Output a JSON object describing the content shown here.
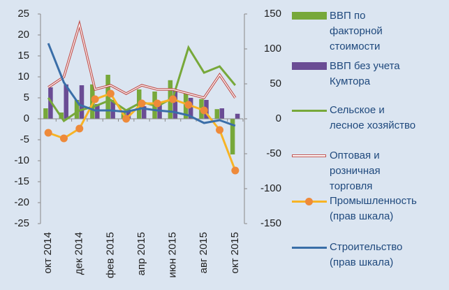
{
  "chart_data": {
    "type": "bar",
    "categories": [
      "окт 2014",
      null,
      "дек 2014",
      null,
      "фев 2015",
      null,
      "апр 2015",
      null,
      "июн 2015",
      null,
      "авг 2015",
      null,
      "окт 2015"
    ],
    "ylim": [
      -25,
      25
    ],
    "yticks": [
      -25,
      -20,
      -15,
      -10,
      -5,
      0,
      5,
      10,
      15,
      20,
      25
    ],
    "y2lim": [
      -150,
      150
    ],
    "y2ticks": [
      -150,
      -100,
      -50,
      0,
      50,
      100,
      150
    ],
    "series": [
      {
        "name": "ВВП по факторной стоимости",
        "type": "bar",
        "color": "#77a83a",
        "values": [
          2.5,
          1.5,
          4.5,
          8.2,
          10.5,
          1.5,
          7,
          6.5,
          9.2,
          6,
          4.7,
          2.3,
          -8.5
        ]
      },
      {
        "name": "ВВП без учета Кумтора",
        "type": "bar",
        "color": "#6a4c94",
        "values": [
          7.5,
          8.2,
          8,
          3.5,
          4.5,
          2.2,
          3,
          3.5,
          6.8,
          5,
          4.5,
          2.5,
          1.2
        ]
      },
      {
        "name": "Сельское и лесное хозяйство",
        "type": "line",
        "color": "#77a83a",
        "values": [
          5,
          -0.5,
          2,
          3,
          4.5,
          2,
          4,
          3,
          5,
          17,
          11,
          12.5,
          8
        ]
      },
      {
        "name": "Оптовая и розничная торговля",
        "type": "line",
        "color": "#c0504d",
        "values": [
          7.5,
          10,
          22.5,
          7,
          8,
          6,
          8,
          7,
          7,
          6,
          5,
          10.5,
          5
        ]
      },
      {
        "name": "Промышленность (прав шкала)",
        "type": "line",
        "axis": "y2",
        "color": "#f7b425",
        "marker": "#ee8a3a",
        "values": [
          -20,
          -28,
          -14,
          28,
          36,
          0,
          22,
          22,
          28,
          20,
          12,
          -16,
          -74
        ]
      },
      {
        "name": "Строительство (прав шкала)",
        "type": "line",
        "axis": "y2",
        "color": "#3a6ea8",
        "values": [
          108,
          52,
          20,
          12,
          12,
          10,
          15,
          12,
          10,
          5,
          -6,
          -2,
          -10
        ]
      }
    ]
  }
}
